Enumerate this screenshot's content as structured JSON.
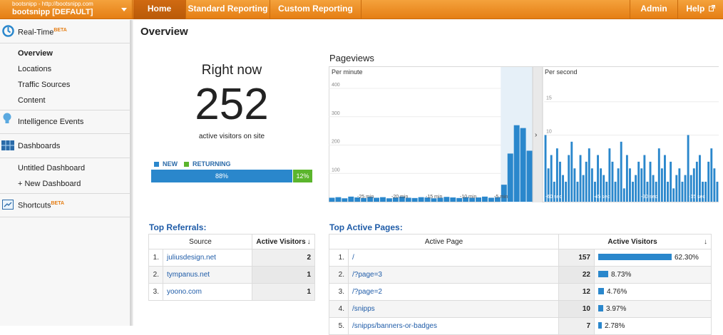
{
  "account": {
    "url": "bootsnipp - http://bootsnipp.com",
    "name": "bootsnipp [DEFAULT]"
  },
  "nav": {
    "home": "Home",
    "standard": "Standard Reporting",
    "custom": "Custom Reporting",
    "admin": "Admin",
    "help": "Help"
  },
  "sidebar": {
    "realtime": "Real-Time",
    "beta": "BETA",
    "realtime_items": [
      "Overview",
      "Locations",
      "Traffic Sources",
      "Content"
    ],
    "intelligence": "Intelligence Events",
    "dashboards": "Dashboards",
    "dashboard_items": [
      "Untitled Dashboard",
      "+ New Dashboard"
    ],
    "shortcuts": "Shortcuts"
  },
  "page": {
    "title": "Overview"
  },
  "right_now": {
    "title": "Right now",
    "count": "252",
    "caption": "active visitors on site",
    "new_label": "NEW",
    "returning_label": "RETURNING",
    "new_pct_text": "88%",
    "returning_pct_text": "12%",
    "new_fraction": 0.88,
    "colors": {
      "new": "#2a87cc",
      "returning": "#5bb52c"
    }
  },
  "chart_data": [
    {
      "type": "bar",
      "title": "Pageviews",
      "subtitle": "Per minute",
      "y_ticks": [
        "400",
        "300",
        "200",
        "100"
      ],
      "ylim": [
        0,
        400
      ],
      "x_tick_labels": [
        "-25 min",
        "-20 min",
        "-15 min",
        "-10 min",
        "-5 min"
      ],
      "values": [
        14,
        16,
        12,
        18,
        15,
        13,
        17,
        14,
        16,
        12,
        15,
        18,
        14,
        13,
        16,
        15,
        12,
        14,
        17,
        15,
        13,
        16,
        14,
        15,
        18,
        14,
        16,
        60,
        170,
        270,
        260,
        180
      ],
      "color": "#2a87cc"
    },
    {
      "type": "bar",
      "subtitle": "Per second",
      "y_ticks": [
        "15",
        "10"
      ],
      "ylim": [
        0,
        17
      ],
      "x_tick_labels": [
        "-60 sec",
        "-45 sec",
        "-30 sec",
        "-15 sec"
      ],
      "values": [
        10,
        5,
        7,
        3,
        8,
        6,
        4,
        3,
        7,
        9,
        5,
        3,
        7,
        4,
        6,
        8,
        5,
        3,
        7,
        5,
        4,
        3,
        8,
        6,
        3,
        5,
        9,
        2,
        7,
        5,
        3,
        4,
        6,
        5,
        7,
        3,
        6,
        4,
        3,
        8,
        5,
        7,
        3,
        6,
        2,
        4,
        5,
        3,
        4,
        10,
        4,
        5,
        6,
        7,
        3,
        3,
        6,
        8,
        5,
        3
      ],
      "color": "#2a87cc"
    }
  ],
  "referrals": {
    "title": "Top Referrals:",
    "headers": [
      "Source",
      "Active Visitors"
    ],
    "rows": [
      {
        "idx": "1.",
        "source": "juliusdesign.net",
        "visitors": "2"
      },
      {
        "idx": "2.",
        "source": "tympanus.net",
        "visitors": "1"
      },
      {
        "idx": "3.",
        "source": "yoono.com",
        "visitors": "1"
      }
    ]
  },
  "pages": {
    "title": "Top Active Pages:",
    "headers": [
      "Active Page",
      "Active Visitors"
    ],
    "rows": [
      {
        "idx": "1.",
        "page": "/",
        "visitors": "157",
        "pct": "62.30%",
        "frac": 0.623
      },
      {
        "idx": "2.",
        "page": "/?page=3",
        "visitors": "22",
        "pct": "8.73%",
        "frac": 0.0873
      },
      {
        "idx": "3.",
        "page": "/?page=2",
        "visitors": "12",
        "pct": "4.76%",
        "frac": 0.0476
      },
      {
        "idx": "4.",
        "page": "/snipps",
        "visitors": "10",
        "pct": "3.97%",
        "frac": 0.0397
      },
      {
        "idx": "5.",
        "page": "/snipps/banners-or-badges",
        "visitors": "7",
        "pct": "2.78%",
        "frac": 0.0278
      }
    ]
  }
}
